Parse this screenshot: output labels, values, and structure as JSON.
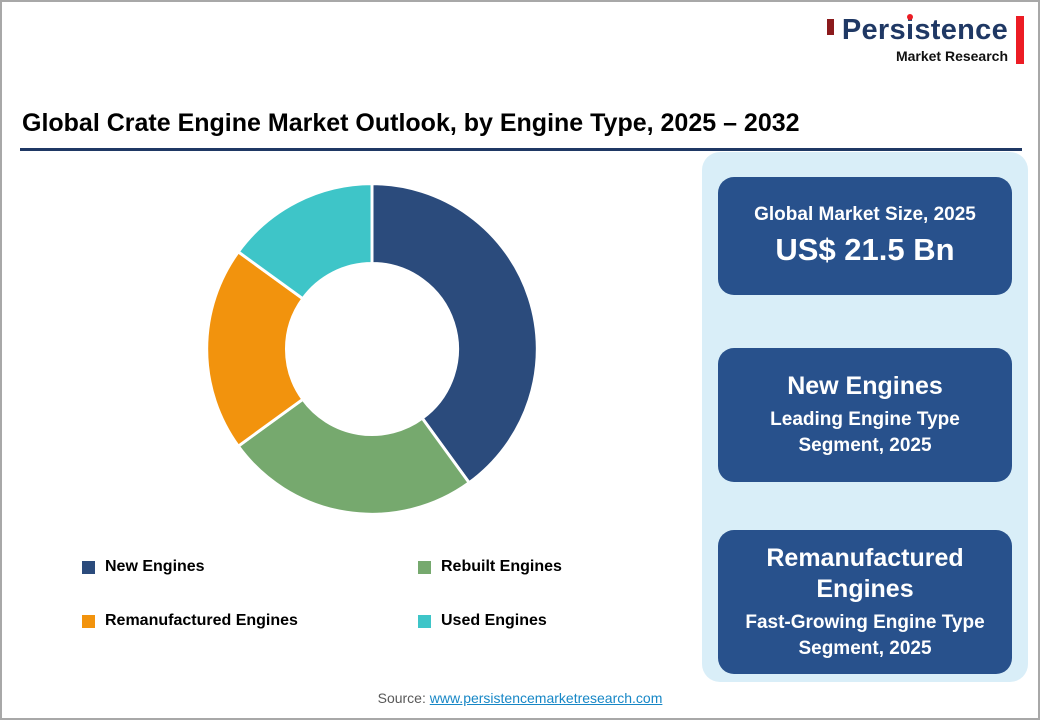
{
  "page": {
    "title": "Global Crate Engine Market Outlook, by Engine Type, 2025 – 2032",
    "source_label": "Source:",
    "source_link": "www.persistencemarketresearch.com"
  },
  "logo": {
    "brand": {
      "pre": "Pers",
      "dotted": "i",
      "post": "stence"
    },
    "tagline": "Market Research"
  },
  "chart_data": {
    "type": "pie",
    "donut": true,
    "title": "Global Crate Engine Market Outlook, by Engine Type, 2025 – 2032",
    "categories": [
      "New Engines",
      "Rebuilt Engines",
      "Remanufactured Engines",
      "Used Engines"
    ],
    "values": [
      40,
      25,
      20,
      15
    ],
    "values_note": "estimated percentages, no data labels shown in chart",
    "colors": [
      "#2B4B7C",
      "#76A96E",
      "#F2930D",
      "#3EC5C8"
    ],
    "legend_position": "bottom",
    "start_angle_deg": 0,
    "direction": "clockwise"
  },
  "highlights": [
    {
      "label": "Global Market Size, 2025",
      "value": "US$ 21.5 Bn"
    },
    {
      "title": "New Engines",
      "subtitle": "Leading Engine Type Segment, 2025"
    },
    {
      "title": "Remanufactured Engines",
      "subtitle": "Fast-Growing Engine Type Segment, 2025"
    }
  ],
  "colors": {
    "accent_underline": "#1F3864",
    "panel_bg": "#D9EEF8",
    "card_bg": "#28518C",
    "link": "#1787C6",
    "logo_navy": "#1F3864",
    "logo_red": "#EC1C24",
    "logo_maroon": "#8B1A1C"
  }
}
